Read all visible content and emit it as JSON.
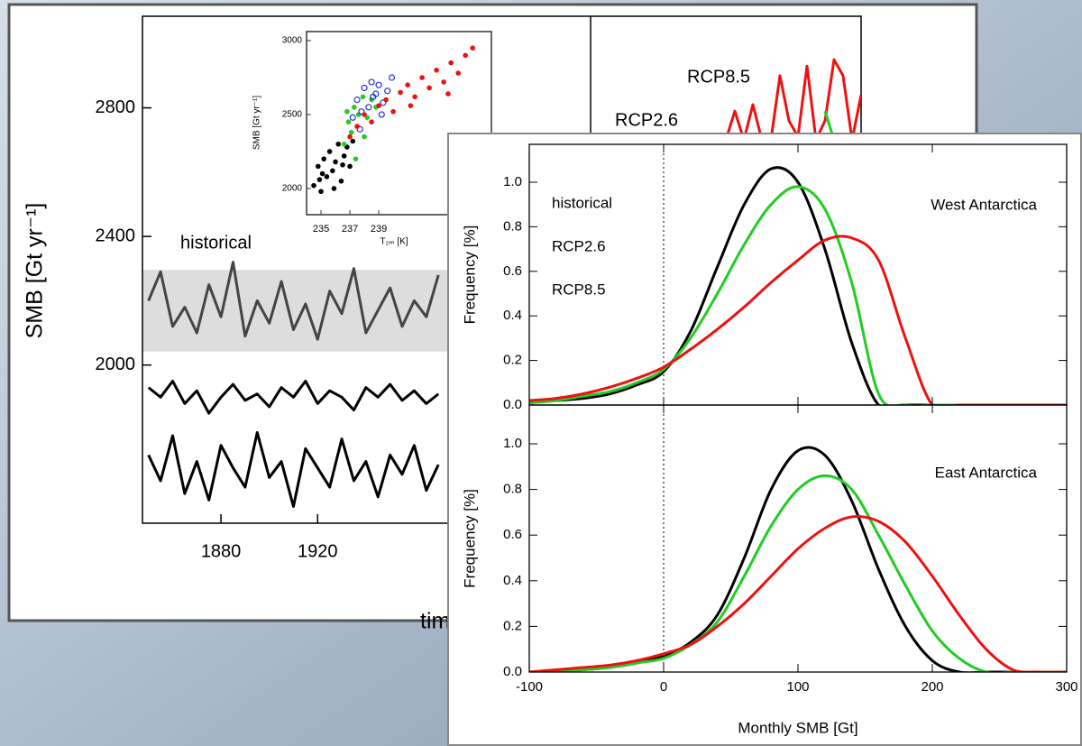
{
  "chart_data": [
    {
      "type": "line",
      "ylabel": "SMB [Gt yr⁻¹]",
      "xlabel": "time",
      "x": [
        1850,
        1855,
        1860,
        1865,
        1870,
        1875,
        1880,
        1885,
        1890,
        1895,
        1900,
        1905,
        1910,
        1915,
        1920,
        1925,
        1930,
        1935,
        1940,
        1945,
        1950,
        1955,
        1960,
        1965,
        1970
      ],
      "xlim": [
        1847.5,
        2033
      ],
      "xticks": [
        1880,
        1920
      ],
      "ylim": [
        1508,
        3085
      ],
      "yticks": [
        2000,
        2400,
        2800
      ],
      "shade": [
        2042,
        2296
      ],
      "shade_color": "#dddddd",
      "annotation": "historical",
      "series": [
        {
          "color": "#444444",
          "values": [
            2200,
            2290,
            2120,
            2180,
            2100,
            2250,
            2150,
            2320,
            2090,
            2200,
            2130,
            2260,
            2110,
            2190,
            2080,
            2230,
            2160,
            2300,
            2100,
            2170,
            2240,
            2120,
            2200,
            2150,
            2280
          ]
        },
        {
          "color": "#000000",
          "values": [
            1930,
            1900,
            1950,
            1880,
            1920,
            1850,
            1900,
            1940,
            1890,
            1910,
            1870,
            1930,
            1900,
            1950,
            1880,
            1920,
            1900,
            1860,
            1930,
            1900,
            1940,
            1890,
            1920,
            1880,
            1910
          ]
        },
        {
          "color": "#000000",
          "values": [
            1720,
            1640,
            1780,
            1600,
            1700,
            1580,
            1750,
            1680,
            1620,
            1790,
            1650,
            1700,
            1560,
            1740,
            1680,
            1620,
            1770,
            1640,
            1700,
            1590,
            1720,
            1660,
            1750,
            1610,
            1690
          ]
        }
      ]
    },
    {
      "type": "scatter",
      "ylabel": "SMB [Gt yr⁻¹]",
      "xlabel": "T₂ₘ [K]",
      "xlim": [
        234,
        246.8
      ],
      "xticks": [
        235,
        237,
        239
      ],
      "ylim": [
        1823,
        3061
      ],
      "yticks": [
        2000,
        2500,
        3000
      ],
      "series": [
        {
          "color": "#000000",
          "marker": "filled",
          "x": [
            234.5,
            234.8,
            235.0,
            235.2,
            235.4,
            235.6,
            235.8,
            236.0,
            236.2,
            236.4,
            236.6,
            236.8,
            237.0,
            237.2,
            235.1,
            235.9,
            236.5,
            234.9
          ],
          "y": [
            2020,
            2150,
            1980,
            2200,
            2080,
            2250,
            2120,
            2180,
            2300,
            2050,
            2220,
            2280,
            2150,
            2320,
            2100,
            2000,
            2160,
            2060
          ]
        },
        {
          "color": "#22cc22",
          "marker": "filled",
          "x": [
            236.6,
            236.9,
            237.1,
            237.3,
            237.6,
            237.9,
            238.2,
            238.5,
            238.8,
            237.4,
            238.0,
            236.8
          ],
          "y": [
            2300,
            2450,
            2380,
            2550,
            2500,
            2620,
            2480,
            2600,
            2550,
            2200,
            2350,
            2520
          ]
        },
        {
          "color": "#2233dd",
          "marker": "open",
          "x": [
            237.2,
            237.5,
            237.8,
            238.0,
            238.3,
            238.5,
            238.8,
            239.0,
            239.3,
            239.6,
            239.9,
            237.7,
            238.6,
            239.2
          ],
          "y": [
            2480,
            2600,
            2520,
            2680,
            2550,
            2720,
            2640,
            2700,
            2580,
            2660,
            2750,
            2400,
            2620,
            2500
          ]
        },
        {
          "color": "#ee1111",
          "marker": "filled",
          "x": [
            237.0,
            237.5,
            238.0,
            238.5,
            239.0,
            239.5,
            240.0,
            240.5,
            241.0,
            241.5,
            242.0,
            242.5,
            243.0,
            243.5,
            244.0,
            244.5,
            245.0,
            245.5,
            241.2,
            243.8
          ],
          "y": [
            2350,
            2420,
            2500,
            2450,
            2560,
            2600,
            2520,
            2650,
            2700,
            2620,
            2750,
            2680,
            2800,
            2720,
            2850,
            2780,
            2900,
            2950,
            2560,
            2640
          ]
        }
      ]
    },
    {
      "type": "line",
      "ylim": [
        1508,
        3085
      ],
      "categories": [
        null,
        null,
        null,
        null,
        null,
        null,
        null,
        null,
        null,
        null,
        null,
        null,
        null,
        null,
        null,
        null
      ],
      "series": [
        {
          "name": "RCP8.5",
          "color": "#ee1111",
          "values": [
            2700,
            2790,
            2700,
            2810,
            2700,
            2700,
            2900,
            2760,
            2710,
            2930,
            2700,
            2760,
            2950,
            2900,
            2700,
            2840
          ]
        },
        {
          "name": "RCP2.6",
          "color": "#22cc22",
          "values": [
            null,
            null,
            null,
            null,
            null,
            null,
            null,
            null,
            null,
            null,
            null,
            2790,
            2700,
            null,
            null,
            null
          ]
        }
      ]
    },
    {
      "type": "density",
      "xlabel": "Monthly SMB [Gt]",
      "ylabel": "Frequency [%]",
      "x": [
        -100,
        -80,
        -60,
        -40,
        -20,
        0,
        20,
        40,
        60,
        80,
        100,
        120,
        140,
        160,
        180,
        200,
        220,
        240,
        260,
        280,
        300
      ],
      "xlim": [
        -100,
        300
      ],
      "xticks": [
        -100,
        0,
        100,
        200,
        300
      ],
      "vline": 0,
      "ylim": [
        0,
        1.17
      ],
      "yticks": [
        {
          "value": 0,
          "label": "0.0"
        },
        0.2,
        0.4,
        0.6,
        0.8,
        {
          "value": 1,
          "label": "1.0"
        }
      ],
      "series": [
        {
          "name": "historical",
          "color": "#000000"
        },
        {
          "name": "RCP2.6",
          "color": "#22cc22"
        },
        {
          "name": "RCP8.5",
          "color": "#ee1111"
        }
      ],
      "panels": [
        {
          "title": "West Antarctica",
          "values": [
            [
              0.01,
              0.02,
              0.03,
              0.05,
              0.09,
              0.15,
              0.33,
              0.62,
              0.9,
              1.06,
              1.0,
              0.7,
              0.28,
              0,
              0,
              0,
              0,
              0,
              0,
              0,
              0
            ],
            [
              0.01,
              0.02,
              0.04,
              0.06,
              0.1,
              0.16,
              0.3,
              0.5,
              0.72,
              0.9,
              0.98,
              0.88,
              0.55,
              0.05,
              0,
              0,
              0,
              0,
              0,
              0,
              0
            ],
            [
              0.02,
              0.03,
              0.05,
              0.08,
              0.12,
              0.17,
              0.25,
              0.34,
              0.44,
              0.55,
              0.65,
              0.74,
              0.75,
              0.65,
              0.3,
              0,
              0,
              0,
              0,
              0,
              0
            ]
          ]
        },
        {
          "title": "East Antarctica",
          "values": [
            [
              0,
              0,
              0.01,
              0.02,
              0.04,
              0.07,
              0.13,
              0.25,
              0.5,
              0.8,
              0.97,
              0.95,
              0.75,
              0.45,
              0.2,
              0.05,
              0,
              0,
              0,
              0,
              0
            ],
            [
              0,
              0,
              0.01,
              0.02,
              0.04,
              0.06,
              0.12,
              0.22,
              0.42,
              0.64,
              0.8,
              0.86,
              0.8,
              0.6,
              0.38,
              0.18,
              0.06,
              0,
              0,
              0,
              0
            ],
            [
              0,
              0.01,
              0.02,
              0.03,
              0.05,
              0.08,
              0.12,
              0.2,
              0.3,
              0.42,
              0.54,
              0.63,
              0.68,
              0.66,
              0.57,
              0.42,
              0.25,
              0.1,
              0.01,
              0,
              0
            ]
          ]
        }
      ]
    }
  ]
}
